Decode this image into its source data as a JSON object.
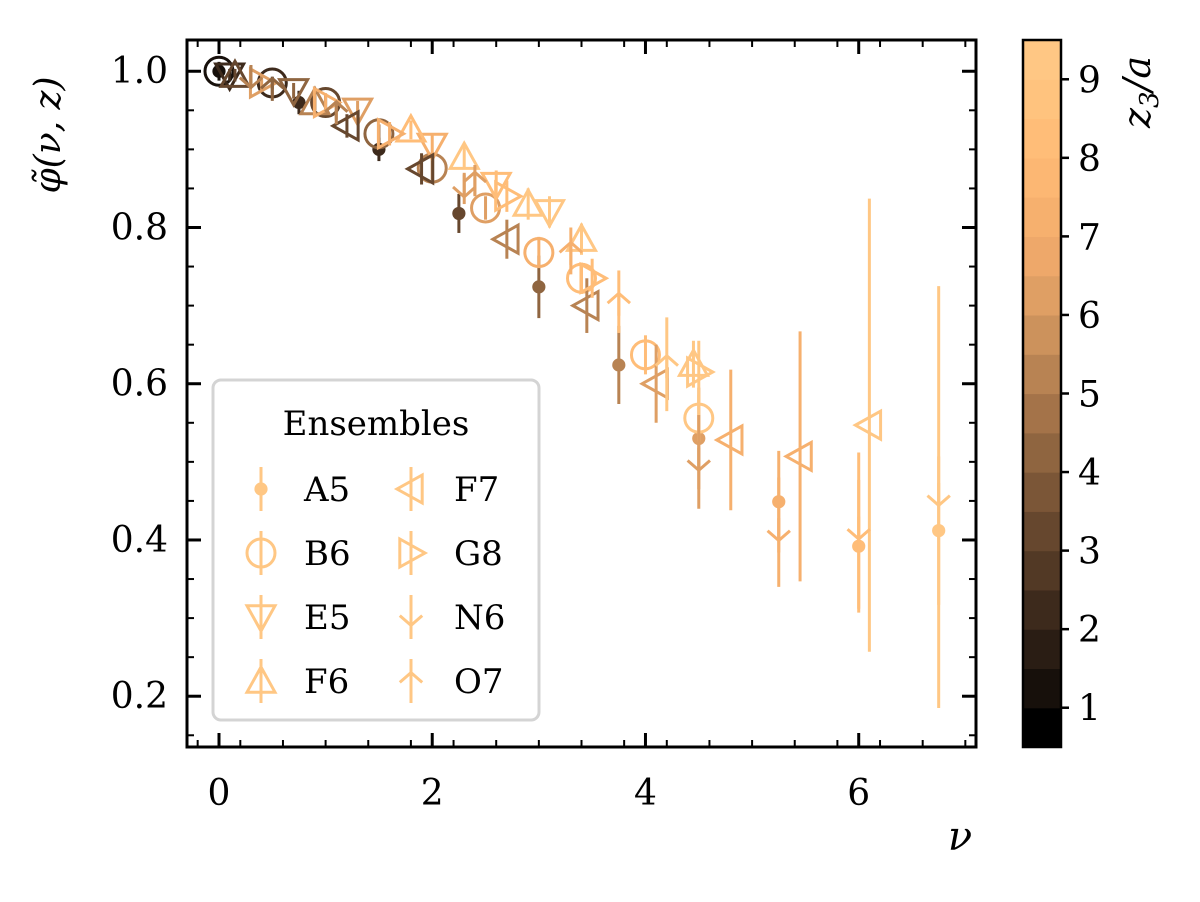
{
  "chart_data": {
    "type": "scatter",
    "xlabel": "ν",
    "ylabel": "φ̃(ν, z)",
    "xlim": [
      -0.3,
      7.1
    ],
    "ylim": [
      0.135,
      1.04
    ],
    "xticks": [
      0,
      2,
      4,
      6
    ],
    "xtick_labels": [
      "0",
      "2",
      "4",
      "6"
    ],
    "yticks": [
      0.2,
      0.4,
      0.6,
      0.8,
      1.0
    ],
    "ytick_labels": [
      "0.2",
      "0.4",
      "0.6",
      "0.8",
      "1.0"
    ],
    "grid": false,
    "legend": {
      "title": "Ensembles",
      "placement": "lower-left",
      "entries": [
        "A5",
        "B6",
        "E5",
        "F6",
        "F7",
        "G8",
        "N6",
        "O7"
      ]
    },
    "colorbar": {
      "label": "z3/a",
      "label_main": "z",
      "label_sub": "3",
      "label_tail": "/a",
      "range": [
        0.5,
        9.5
      ],
      "ticks": [
        1,
        2,
        3,
        4,
        5,
        6,
        7,
        8,
        9
      ],
      "tick_labels": [
        "1",
        "2",
        "3",
        "4",
        "5",
        "6",
        "7",
        "8",
        "9"
      ],
      "levels": 18,
      "colors": [
        "#000000",
        "#17100b",
        "#2a1d14",
        "#3d2a1c",
        "#523925",
        "#66472e",
        "#7b5637",
        "#8f6540",
        "#a47349",
        "#b88353",
        "#cc925c",
        "#df9f64",
        "#eea86a",
        "#f6b06e",
        "#fcb773",
        "#ffbd78",
        "#ffc37e",
        "#ffc784"
      ]
    },
    "series": [
      {
        "name": "A5",
        "marker": "dot",
        "points": [
          {
            "x": 0,
            "y": 1.0,
            "err": 0.012,
            "z": 1
          },
          {
            "x": 0.75,
            "y": 0.96,
            "err": 0.015,
            "z": 2
          },
          {
            "x": 1.5,
            "y": 0.9,
            "err": 0.015,
            "z": 2
          },
          {
            "x": 2.25,
            "y": 0.818,
            "err": 0.025,
            "z": 3
          },
          {
            "x": 3.0,
            "y": 0.724,
            "err": 0.04,
            "z": 4
          },
          {
            "x": 3.75,
            "y": 0.624,
            "err": 0.05,
            "z": 5
          },
          {
            "x": 4.5,
            "y": 0.53,
            "err": 0.065,
            "z": 6
          },
          {
            "x": 5.25,
            "y": 0.449,
            "err": 0.065,
            "z": 7
          },
          {
            "x": 6.0,
            "y": 0.392,
            "err": 0.085,
            "z": 8
          },
          {
            "x": 6.75,
            "y": 0.412,
            "err": 0.095,
            "z": 9
          }
        ]
      },
      {
        "name": "B6",
        "marker": "circle",
        "points": [
          {
            "x": 0,
            "y": 1.0,
            "err": 0.008,
            "z": 1
          },
          {
            "x": 0.5,
            "y": 0.985,
            "err": 0.008,
            "z": 2
          },
          {
            "x": 1.0,
            "y": 0.96,
            "err": 0.01,
            "z": 3
          },
          {
            "x": 1.5,
            "y": 0.92,
            "err": 0.012,
            "z": 4
          },
          {
            "x": 2.0,
            "y": 0.876,
            "err": 0.015,
            "z": 5
          },
          {
            "x": 2.5,
            "y": 0.825,
            "err": 0.015,
            "z": 6
          },
          {
            "x": 3.0,
            "y": 0.768,
            "err": 0.02,
            "z": 7
          },
          {
            "x": 3.4,
            "y": 0.735,
            "err": 0.02,
            "z": 8
          },
          {
            "x": 4.0,
            "y": 0.637,
            "err": 0.025,
            "z": 8
          },
          {
            "x": 4.5,
            "y": 0.556,
            "err": 0.03,
            "z": 9
          }
        ]
      },
      {
        "name": "E5",
        "marker": "tri-down",
        "points": [
          {
            "x": 0.1,
            "y": 0.995,
            "err": 0.008,
            "z": 2
          },
          {
            "x": 0.7,
            "y": 0.975,
            "err": 0.01,
            "z": 4
          },
          {
            "x": 1.3,
            "y": 0.95,
            "err": 0.012,
            "z": 6
          },
          {
            "x": 2.0,
            "y": 0.905,
            "err": 0.015,
            "z": 7
          },
          {
            "x": 2.6,
            "y": 0.855,
            "err": 0.018,
            "z": 8
          },
          {
            "x": 3.1,
            "y": 0.82,
            "err": 0.02,
            "z": 9
          }
        ]
      },
      {
        "name": "F6",
        "marker": "tri-up",
        "points": [
          {
            "x": 0.15,
            "y": 0.995,
            "err": 0.008,
            "z": 3
          },
          {
            "x": 0.9,
            "y": 0.96,
            "err": 0.01,
            "z": 5
          },
          {
            "x": 1.8,
            "y": 0.925,
            "err": 0.012,
            "z": 8
          },
          {
            "x": 2.3,
            "y": 0.89,
            "err": 0.015,
            "z": 9
          },
          {
            "x": 2.9,
            "y": 0.83,
            "err": 0.02,
            "z": 9
          },
          {
            "x": 3.4,
            "y": 0.785,
            "err": 0.02,
            "z": 9
          },
          {
            "x": 4.45,
            "y": 0.625,
            "err": 0.03,
            "z": 9
          }
        ]
      },
      {
        "name": "F7",
        "marker": "tri-left",
        "points": [
          {
            "x": 1.2,
            "y": 0.93,
            "err": 0.015,
            "z": 3
          },
          {
            "x": 1.9,
            "y": 0.875,
            "err": 0.02,
            "z": 3
          },
          {
            "x": 2.7,
            "y": 0.785,
            "err": 0.025,
            "z": 5
          },
          {
            "x": 3.45,
            "y": 0.7,
            "err": 0.035,
            "z": 5
          },
          {
            "x": 4.1,
            "y": 0.6,
            "err": 0.05,
            "z": 6
          },
          {
            "x": 4.8,
            "y": 0.528,
            "err": 0.09,
            "z": 7
          },
          {
            "x": 5.45,
            "y": 0.507,
            "err": 0.16,
            "z": 7
          },
          {
            "x": 6.1,
            "y": 0.547,
            "err": 0.29,
            "z": 9
          }
        ]
      },
      {
        "name": "G8",
        "marker": "tri-right",
        "points": [
          {
            "x": 0.4,
            "y": 0.985,
            "err": 0.01,
            "z": 6
          },
          {
            "x": 1.0,
            "y": 0.96,
            "err": 0.012,
            "z": 7
          },
          {
            "x": 1.6,
            "y": 0.92,
            "err": 0.015,
            "z": 7
          },
          {
            "x": 2.7,
            "y": 0.84,
            "err": 0.02,
            "z": 8
          },
          {
            "x": 3.5,
            "y": 0.735,
            "err": 0.025,
            "z": 8
          },
          {
            "x": 4.5,
            "y": 0.615,
            "err": 0.04,
            "z": 9
          }
        ]
      },
      {
        "name": "N6",
        "marker": "tri-down-thin",
        "points": [
          {
            "x": 0.3,
            "y": 0.99,
            "err": 0.01,
            "z": 5
          },
          {
            "x": 2.3,
            "y": 0.85,
            "err": 0.02,
            "z": 6
          },
          {
            "x": 4.5,
            "y": 0.5,
            "err": 0.06,
            "z": 6
          },
          {
            "x": 5.25,
            "y": 0.41,
            "err": 0.07,
            "z": 7
          },
          {
            "x": 6.0,
            "y": 0.412,
            "err": 0.1,
            "z": 8
          },
          {
            "x": 6.75,
            "y": 0.455,
            "err": 0.27,
            "z": 9
          }
        ]
      },
      {
        "name": "O7",
        "marker": "tri-up-thin",
        "points": [
          {
            "x": 0.5,
            "y": 0.98,
            "err": 0.01,
            "z": 4
          },
          {
            "x": 1.1,
            "y": 0.95,
            "err": 0.012,
            "z": 5
          },
          {
            "x": 2.4,
            "y": 0.86,
            "err": 0.02,
            "z": 6
          },
          {
            "x": 3.3,
            "y": 0.77,
            "err": 0.03,
            "z": 7
          },
          {
            "x": 3.75,
            "y": 0.705,
            "err": 0.04,
            "z": 8
          },
          {
            "x": 4.2,
            "y": 0.625,
            "err": 0.06,
            "z": 9
          }
        ]
      }
    ]
  }
}
